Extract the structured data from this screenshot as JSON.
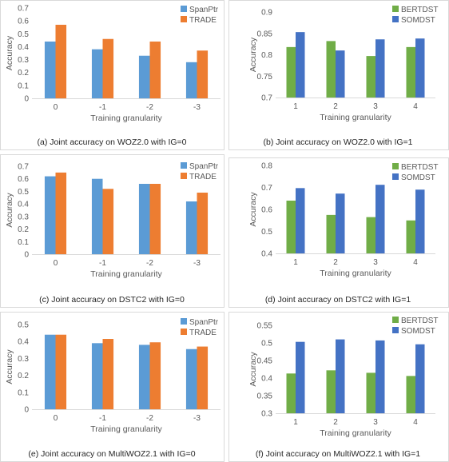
{
  "colors": {
    "green": "#70AD47",
    "blue": "#4472C4",
    "lightblue": "#5B9BD5",
    "orange": "#ED7D31"
  },
  "chart_data": [
    {
      "type": "bar",
      "caption": "(a) Joint accuracy on WOZ2.0 with IG=0",
      "xlabel": "Training granularity",
      "ylabel": "Accuracy",
      "ylim": [
        0,
        0.7
      ],
      "yticks": [
        "0",
        "0.1",
        "0.2",
        "0.3",
        "0.4",
        "0.5",
        "0.6",
        "0.7"
      ],
      "categories": [
        "0",
        "-1",
        "-2",
        "-3"
      ],
      "legend_position": "top-right",
      "series": [
        {
          "name": "SpanPtr",
          "color": "#5B9BD5",
          "values": [
            0.44,
            0.38,
            0.33,
            0.28
          ]
        },
        {
          "name": "TRADE",
          "color": "#ED7D31",
          "values": [
            0.57,
            0.46,
            0.44,
            0.37
          ]
        }
      ]
    },
    {
      "type": "bar",
      "caption": "(b) Joint accuracy on WOZ2.0 with IG=1",
      "xlabel": "Training granularity",
      "ylabel": "Accuracy",
      "ylim": [
        0.7,
        0.9
      ],
      "yticks": [
        "0.7",
        "0.75",
        "0.8",
        "0.85",
        "0.9"
      ],
      "categories": [
        "1",
        "2",
        "3",
        "4"
      ],
      "legend_position": "top-right",
      "series": [
        {
          "name": "BERTDST",
          "color": "#70AD47",
          "values": [
            0.818,
            0.832,
            0.797,
            0.818
          ]
        },
        {
          "name": "SOMDST",
          "color": "#4472C4",
          "values": [
            0.853,
            0.81,
            0.836,
            0.838
          ]
        }
      ]
    },
    {
      "type": "bar",
      "caption": "(c) Joint accuracy on DSTC2 with IG=0",
      "xlabel": "Training granularity",
      "ylabel": "Accuracy",
      "ylim": [
        0,
        0.7
      ],
      "yticks": [
        "0",
        "0.1",
        "0.2",
        "0.3",
        "0.4",
        "0.5",
        "0.6",
        "0.7"
      ],
      "categories": [
        "0",
        "-1",
        "-2",
        "-3"
      ],
      "legend_position": "top-right",
      "series": [
        {
          "name": "SpanPtr",
          "color": "#5B9BD5",
          "values": [
            0.62,
            0.6,
            0.56,
            0.42
          ]
        },
        {
          "name": "TRADE",
          "color": "#ED7D31",
          "values": [
            0.65,
            0.52,
            0.56,
            0.49
          ]
        }
      ]
    },
    {
      "type": "bar",
      "caption": "(d) Joint accuracy on DSTC2 with IG=1",
      "xlabel": "Training granularity",
      "ylabel": "Accuracy",
      "ylim": [
        0.4,
        0.8
      ],
      "yticks": [
        "0.4",
        "0.5",
        "0.6",
        "0.7",
        "0.8"
      ],
      "categories": [
        "1",
        "2",
        "3",
        "4"
      ],
      "legend_position": "top-right",
      "series": [
        {
          "name": "BERTDST",
          "color": "#70AD47",
          "values": [
            0.64,
            0.575,
            0.565,
            0.55
          ]
        },
        {
          "name": "SOMDST",
          "color": "#4472C4",
          "values": [
            0.697,
            0.672,
            0.712,
            0.69
          ]
        }
      ]
    },
    {
      "type": "bar",
      "caption": "(e) Joint accuracy on MultiWOZ2.1 with IG=0",
      "xlabel": "Training granularity",
      "ylabel": "Accuracy",
      "ylim": [
        0,
        0.5
      ],
      "yticks": [
        "0",
        "0.1",
        "0.2",
        "0.3",
        "0.4",
        "0.5"
      ],
      "categories": [
        "0",
        "-1",
        "-2",
        "-3"
      ],
      "legend_position": "top-right",
      "series": [
        {
          "name": "SpanPtr",
          "color": "#5B9BD5",
          "values": [
            0.44,
            0.39,
            0.38,
            0.355
          ]
        },
        {
          "name": "TRADE",
          "color": "#ED7D31",
          "values": [
            0.44,
            0.415,
            0.395,
            0.37
          ]
        }
      ]
    },
    {
      "type": "bar",
      "caption": "(f) Joint accuracy on MultiWOZ2.1 with IG=1",
      "xlabel": "Training granularity",
      "ylabel": "Accuracy",
      "ylim": [
        0.3,
        0.55
      ],
      "yticks": [
        "0.3",
        "0.35",
        "0.4",
        "0.45",
        "0.5",
        "0.55"
      ],
      "categories": [
        "1",
        "2",
        "3",
        "4"
      ],
      "legend_position": "top-right",
      "series": [
        {
          "name": "BERTDST",
          "color": "#70AD47",
          "values": [
            0.413,
            0.422,
            0.415,
            0.406
          ]
        },
        {
          "name": "SOMDST",
          "color": "#4472C4",
          "values": [
            0.503,
            0.51,
            0.507,
            0.496
          ]
        }
      ]
    }
  ]
}
